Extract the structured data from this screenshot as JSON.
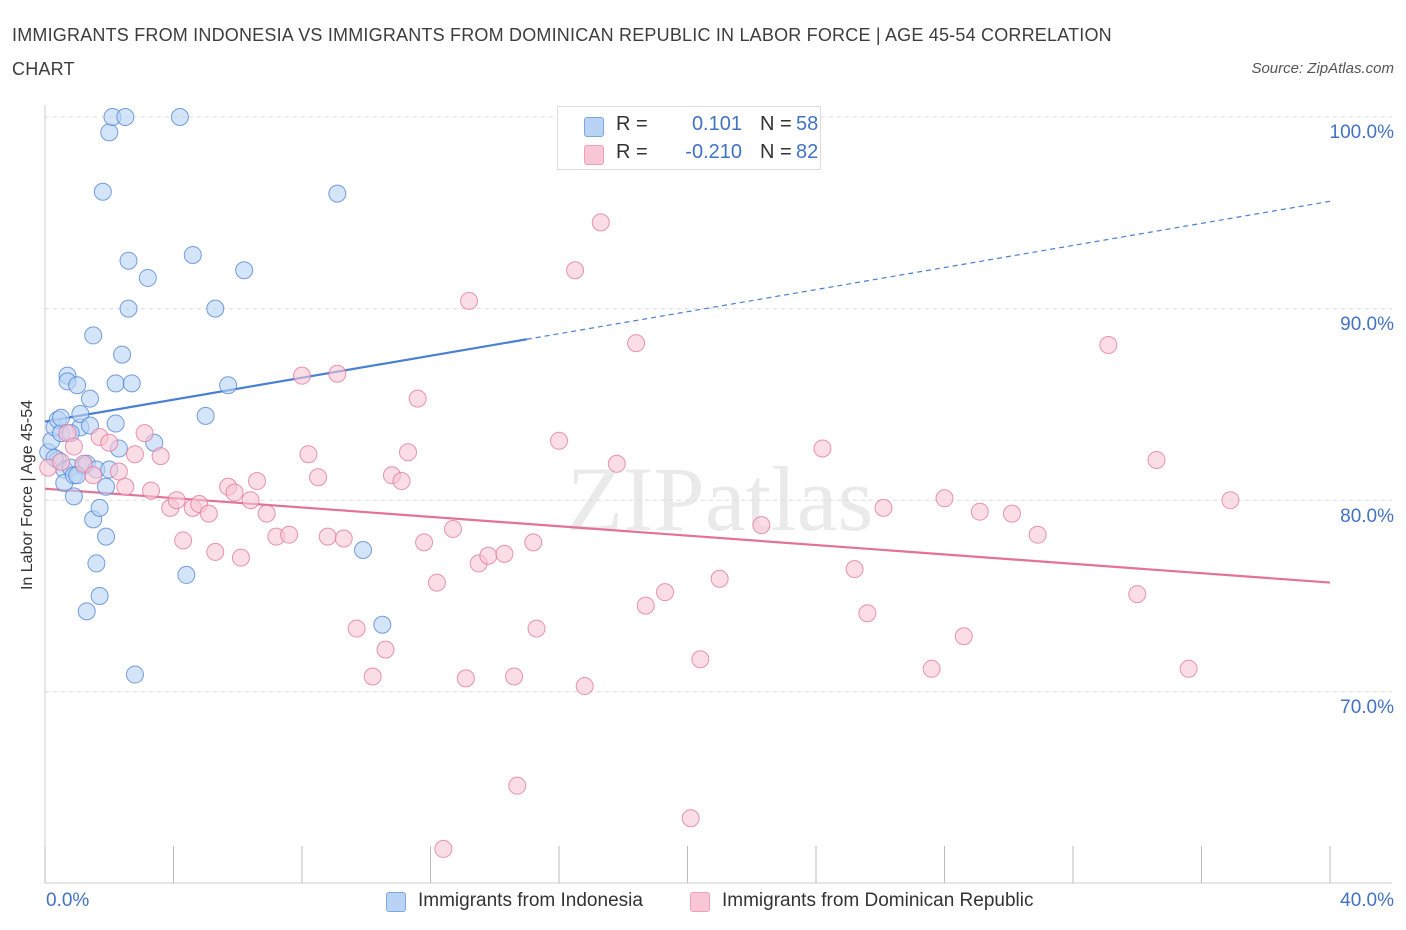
{
  "title": "IMMIGRANTS FROM INDONESIA VS IMMIGRANTS FROM DOMINICAN REPUBLIC IN LABOR FORCE | AGE 45-54 CORRELATION CHART",
  "source": "Source: ZipAtlas.com",
  "watermark": "ZIPatlas",
  "stats": [
    {
      "swatch_color": "#b9d3f5",
      "r_label": "R =",
      "r_value": "0.101",
      "n_label": "N =",
      "n_value": "58"
    },
    {
      "swatch_color": "#f9c6d6",
      "r_label": "R =",
      "r_value": "-0.210",
      "n_label": "N =",
      "n_value": "82"
    }
  ],
  "chart_data": {
    "type": "scatter",
    "title": "IMMIGRANTS FROM INDONESIA VS IMMIGRANTS FROM DOMINICAN REPUBLIC IN LABOR FORCE | AGE 45-54 CORRELATION CHART",
    "xlabel": "",
    "ylabel": "In Labor Force | Age 45-54",
    "xlim": [
      0,
      40
    ],
    "ylim": [
      60,
      100
    ],
    "x_tick_labels": [
      "0.0%",
      "40.0%"
    ],
    "y_ticks": [
      70,
      80,
      90,
      100
    ],
    "y_tick_labels": [
      "70.0%",
      "80.0%",
      "90.0%",
      "100.0%"
    ],
    "grid": true,
    "legend_position": "bottom",
    "series": [
      {
        "name": "Immigrants from Indonesia",
        "color": "#4a7fd4",
        "fill": "#b9d3f5",
        "points": [
          [
            0.1,
            82.5
          ],
          [
            0.2,
            83.1
          ],
          [
            0.3,
            83.8
          ],
          [
            0.4,
            84.2
          ],
          [
            0.4,
            82.1
          ],
          [
            0.5,
            83.5
          ],
          [
            0.6,
            81.6
          ],
          [
            0.6,
            80.9
          ],
          [
            0.7,
            86.5
          ],
          [
            0.7,
            86.2
          ],
          [
            0.8,
            81.7
          ],
          [
            0.9,
            80.2
          ],
          [
            0.9,
            81.3
          ],
          [
            1.0,
            86.0
          ],
          [
            1.1,
            83.8
          ],
          [
            1.1,
            84.5
          ],
          [
            1.2,
            81.8
          ],
          [
            1.3,
            81.9
          ],
          [
            1.4,
            85.3
          ],
          [
            1.5,
            88.6
          ],
          [
            1.5,
            79.0
          ],
          [
            1.6,
            76.7
          ],
          [
            1.6,
            81.6
          ],
          [
            1.7,
            75.0
          ],
          [
            1.7,
            79.6
          ],
          [
            1.8,
            96.1
          ],
          [
            1.9,
            80.7
          ],
          [
            1.9,
            78.1
          ],
          [
            2.0,
            99.2
          ],
          [
            2.1,
            100.0
          ],
          [
            2.2,
            84.0
          ],
          [
            2.2,
            86.1
          ],
          [
            2.3,
            82.7
          ],
          [
            2.4,
            87.6
          ],
          [
            2.5,
            100.0
          ],
          [
            2.6,
            90.0
          ],
          [
            2.6,
            92.5
          ],
          [
            2.7,
            86.1
          ],
          [
            2.8,
            70.9
          ],
          [
            3.2,
            91.6
          ],
          [
            3.4,
            83.0
          ],
          [
            4.2,
            100.0
          ],
          [
            4.4,
            76.1
          ],
          [
            4.6,
            92.8
          ],
          [
            5.0,
            84.4
          ],
          [
            5.3,
            90.0
          ],
          [
            5.7,
            86.0
          ],
          [
            6.2,
            92.0
          ],
          [
            9.1,
            96.0
          ],
          [
            9.9,
            77.4
          ],
          [
            10.5,
            73.5
          ],
          [
            1.3,
            74.2
          ],
          [
            0.5,
            84.3
          ],
          [
            1.0,
            81.3
          ],
          [
            0.3,
            82.2
          ],
          [
            2.0,
            81.6
          ],
          [
            0.8,
            83.5
          ],
          [
            1.4,
            83.9
          ]
        ],
        "trend": {
          "x": [
            0.0,
            15.0
          ],
          "y": [
            84.1,
            88.4
          ]
        },
        "trend_extension": {
          "x": [
            15.0,
            40.0
          ],
          "y": [
            88.4,
            95.6
          ]
        }
      },
      {
        "name": "Immigrants from Dominican Republic",
        "color": "#e2729a",
        "fill": "#f9c6d6",
        "points": [
          [
            0.1,
            81.7
          ],
          [
            0.5,
            82.0
          ],
          [
            0.7,
            83.5
          ],
          [
            0.9,
            82.8
          ],
          [
            1.2,
            81.9
          ],
          [
            1.5,
            81.3
          ],
          [
            1.7,
            83.3
          ],
          [
            2.0,
            83.0
          ],
          [
            2.3,
            81.5
          ],
          [
            2.5,
            80.7
          ],
          [
            2.8,
            82.4
          ],
          [
            3.1,
            83.5
          ],
          [
            3.3,
            80.5
          ],
          [
            3.6,
            82.3
          ],
          [
            3.9,
            79.6
          ],
          [
            4.1,
            80.0
          ],
          [
            4.3,
            77.9
          ],
          [
            4.6,
            79.6
          ],
          [
            4.8,
            79.8
          ],
          [
            5.1,
            79.3
          ],
          [
            5.3,
            77.3
          ],
          [
            5.7,
            80.7
          ],
          [
            5.9,
            80.4
          ],
          [
            6.1,
            77.0
          ],
          [
            6.4,
            80.0
          ],
          [
            6.6,
            81.0
          ],
          [
            6.9,
            79.3
          ],
          [
            7.2,
            78.1
          ],
          [
            7.6,
            78.2
          ],
          [
            8.0,
            86.5
          ],
          [
            8.2,
            82.4
          ],
          [
            8.5,
            81.2
          ],
          [
            8.8,
            78.1
          ],
          [
            9.1,
            86.6
          ],
          [
            9.3,
            78.0
          ],
          [
            9.7,
            73.3
          ],
          [
            10.2,
            70.8
          ],
          [
            10.6,
            72.2
          ],
          [
            10.8,
            81.3
          ],
          [
            11.3,
            82.5
          ],
          [
            11.6,
            85.3
          ],
          [
            11.1,
            81.0
          ],
          [
            11.8,
            77.8
          ],
          [
            12.2,
            75.7
          ],
          [
            12.4,
            61.8
          ],
          [
            12.7,
            78.5
          ],
          [
            13.1,
            70.7
          ],
          [
            13.2,
            90.4
          ],
          [
            13.5,
            76.7
          ],
          [
            13.8,
            77.1
          ],
          [
            14.3,
            77.2
          ],
          [
            14.6,
            70.8
          ],
          [
            14.7,
            65.1
          ],
          [
            15.2,
            77.8
          ],
          [
            15.3,
            73.3
          ],
          [
            16.0,
            83.1
          ],
          [
            16.5,
            92.0
          ],
          [
            16.8,
            70.3
          ],
          [
            17.3,
            94.5
          ],
          [
            17.8,
            81.9
          ],
          [
            18.4,
            88.2
          ],
          [
            18.7,
            74.5
          ],
          [
            19.3,
            75.2
          ],
          [
            20.1,
            63.4
          ],
          [
            20.4,
            71.7
          ],
          [
            21.0,
            75.9
          ],
          [
            22.3,
            78.7
          ],
          [
            24.2,
            82.7
          ],
          [
            25.2,
            76.4
          ],
          [
            25.6,
            74.1
          ],
          [
            26.1,
            79.6
          ],
          [
            27.6,
            71.2
          ],
          [
            28.0,
            80.1
          ],
          [
            28.6,
            72.9
          ],
          [
            29.1,
            79.4
          ],
          [
            30.1,
            79.3
          ],
          [
            30.9,
            78.2
          ],
          [
            33.1,
            88.1
          ],
          [
            34.0,
            75.1
          ],
          [
            34.6,
            82.1
          ],
          [
            35.6,
            71.2
          ],
          [
            36.9,
            80.0
          ]
        ],
        "trend": {
          "x": [
            0.0,
            40.0
          ],
          "y": [
            80.6,
            75.7
          ]
        }
      }
    ]
  }
}
